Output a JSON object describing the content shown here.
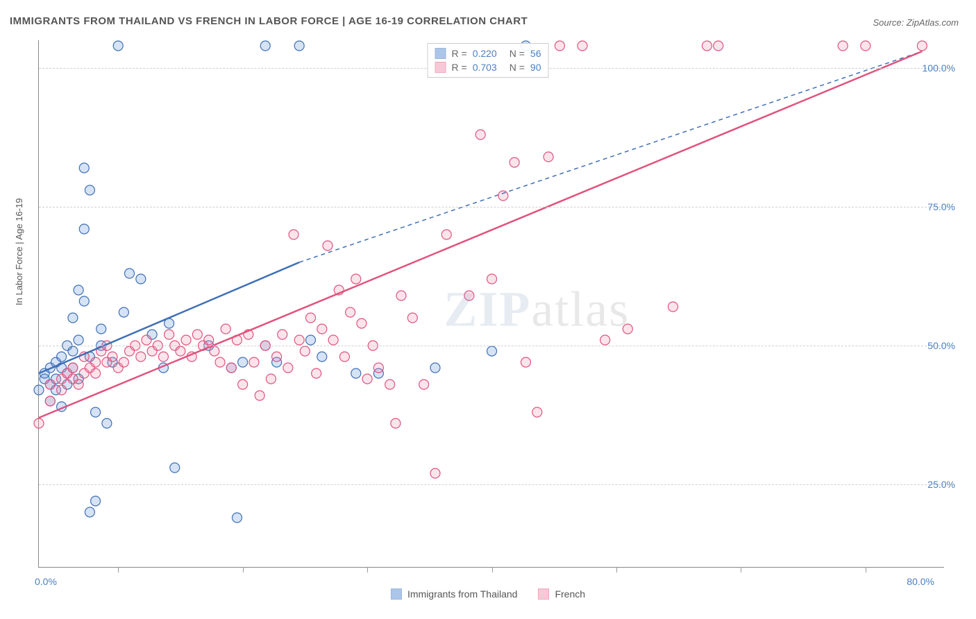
{
  "title": "IMMIGRANTS FROM THAILAND VS FRENCH IN LABOR FORCE | AGE 16-19 CORRELATION CHART",
  "source": "Source: ZipAtlas.com",
  "ylabel": "In Labor Force | Age 16-19",
  "watermark_bold": "ZIP",
  "watermark_thin": "atlas",
  "chart": {
    "type": "scatter",
    "xlim": [
      0,
      80
    ],
    "ylim": [
      10,
      105
    ],
    "y_ticks": [
      25,
      50,
      75,
      100
    ],
    "y_tick_labels": [
      "25.0%",
      "50.0%",
      "75.0%",
      "100.0%"
    ],
    "x_tick_labels": {
      "left": "0.0%",
      "right": "80.0%"
    },
    "x_ticks_minor": [
      7,
      18,
      29,
      40,
      51,
      62,
      73
    ],
    "background_color": "#ffffff",
    "grid_color": "#d0d0d0",
    "marker_radius": 7,
    "marker_stroke_width": 1.2,
    "marker_fill_opacity": 0.25,
    "line_width": 2.5,
    "series": [
      {
        "key": "thailand",
        "label": "Immigrants from Thailand",
        "color": "#5b8fd6",
        "stroke": "#3f6fb5",
        "r_value": "0.220",
        "n_value": "56",
        "trend": {
          "x1": 0,
          "y1": 45,
          "x2": 23,
          "y2": 65,
          "x2_ext": 78,
          "y2_ext": 103
        },
        "points": [
          [
            0,
            42
          ],
          [
            0.5,
            44
          ],
          [
            0.5,
            45
          ],
          [
            1,
            43
          ],
          [
            1,
            46
          ],
          [
            1,
            40
          ],
          [
            1.5,
            44
          ],
          [
            1.5,
            47
          ],
          [
            1.5,
            42
          ],
          [
            2,
            46
          ],
          [
            2,
            39
          ],
          [
            2,
            48
          ],
          [
            2.5,
            45
          ],
          [
            2.5,
            50
          ],
          [
            2.5,
            43
          ],
          [
            3,
            55
          ],
          [
            3,
            49
          ],
          [
            3,
            46
          ],
          [
            3.5,
            51
          ],
          [
            3.5,
            60
          ],
          [
            3.5,
            44
          ],
          [
            4,
            58
          ],
          [
            4,
            82
          ],
          [
            4,
            71
          ],
          [
            4.5,
            48
          ],
          [
            4.5,
            78
          ],
          [
            4.5,
            20
          ],
          [
            5,
            22
          ],
          [
            5,
            38
          ],
          [
            5.5,
            50
          ],
          [
            5.5,
            53
          ],
          [
            6,
            36
          ],
          [
            6.5,
            47
          ],
          [
            7,
            104
          ],
          [
            7.5,
            56
          ],
          [
            8,
            63
          ],
          [
            9,
            62
          ],
          [
            10,
            52
          ],
          [
            11,
            46
          ],
          [
            11.5,
            54
          ],
          [
            12,
            28
          ],
          [
            15,
            50
          ],
          [
            17,
            46
          ],
          [
            17.5,
            19
          ],
          [
            18,
            47
          ],
          [
            20,
            104
          ],
          [
            20,
            50
          ],
          [
            21,
            47
          ],
          [
            23,
            104
          ],
          [
            24,
            51
          ],
          [
            25,
            48
          ],
          [
            28,
            45
          ],
          [
            30,
            45
          ],
          [
            35,
            46
          ],
          [
            40,
            49
          ],
          [
            43,
            104
          ]
        ]
      },
      {
        "key": "french",
        "label": "French",
        "color": "#f092b0",
        "stroke": "#e0537e",
        "r_value": "0.703",
        "n_value": "90",
        "trend": {
          "x1": 0,
          "y1": 37,
          "x2": 78,
          "y2": 103
        },
        "points": [
          [
            0,
            36
          ],
          [
            1,
            40
          ],
          [
            1,
            43
          ],
          [
            2,
            42
          ],
          [
            2,
            44
          ],
          [
            2.5,
            45
          ],
          [
            3,
            44
          ],
          [
            3,
            46
          ],
          [
            3.5,
            43
          ],
          [
            4,
            45
          ],
          [
            4,
            48
          ],
          [
            4.5,
            46
          ],
          [
            5,
            47
          ],
          [
            5,
            45
          ],
          [
            5.5,
            49
          ],
          [
            6,
            47
          ],
          [
            6,
            50
          ],
          [
            6.5,
            48
          ],
          [
            7,
            46
          ],
          [
            7.5,
            47
          ],
          [
            8,
            49
          ],
          [
            8.5,
            50
          ],
          [
            9,
            48
          ],
          [
            9.5,
            51
          ],
          [
            10,
            49
          ],
          [
            10.5,
            50
          ],
          [
            11,
            48
          ],
          [
            11.5,
            52
          ],
          [
            12,
            50
          ],
          [
            12.5,
            49
          ],
          [
            13,
            51
          ],
          [
            13.5,
            48
          ],
          [
            14,
            52
          ],
          [
            14.5,
            50
          ],
          [
            15,
            51
          ],
          [
            15.5,
            49
          ],
          [
            16,
            47
          ],
          [
            16.5,
            53
          ],
          [
            17,
            46
          ],
          [
            17.5,
            51
          ],
          [
            18,
            43
          ],
          [
            18.5,
            52
          ],
          [
            19,
            47
          ],
          [
            19.5,
            41
          ],
          [
            20,
            50
          ],
          [
            20.5,
            44
          ],
          [
            21,
            48
          ],
          [
            21.5,
            52
          ],
          [
            22,
            46
          ],
          [
            22.5,
            70
          ],
          [
            23,
            51
          ],
          [
            23.5,
            49
          ],
          [
            24,
            55
          ],
          [
            24.5,
            45
          ],
          [
            25,
            53
          ],
          [
            25.5,
            68
          ],
          [
            26,
            51
          ],
          [
            26.5,
            60
          ],
          [
            27,
            48
          ],
          [
            27.5,
            56
          ],
          [
            28,
            62
          ],
          [
            28.5,
            54
          ],
          [
            29,
            44
          ],
          [
            29.5,
            50
          ],
          [
            30,
            46
          ],
          [
            31,
            43
          ],
          [
            31.5,
            36
          ],
          [
            32,
            59
          ],
          [
            33,
            55
          ],
          [
            34,
            43
          ],
          [
            35,
            27
          ],
          [
            36,
            70
          ],
          [
            38,
            59
          ],
          [
            39,
            88
          ],
          [
            40,
            62
          ],
          [
            41,
            77
          ],
          [
            42,
            83
          ],
          [
            43,
            47
          ],
          [
            44,
            38
          ],
          [
            45,
            84
          ],
          [
            46,
            104
          ],
          [
            48,
            104
          ],
          [
            50,
            51
          ],
          [
            52,
            53
          ],
          [
            56,
            57
          ],
          [
            59,
            104
          ],
          [
            60,
            104
          ],
          [
            71,
            104
          ],
          [
            73,
            104
          ],
          [
            78,
            104
          ]
        ]
      }
    ]
  },
  "legend_labels": {
    "r_prefix": "R =",
    "n_prefix": "N ="
  }
}
